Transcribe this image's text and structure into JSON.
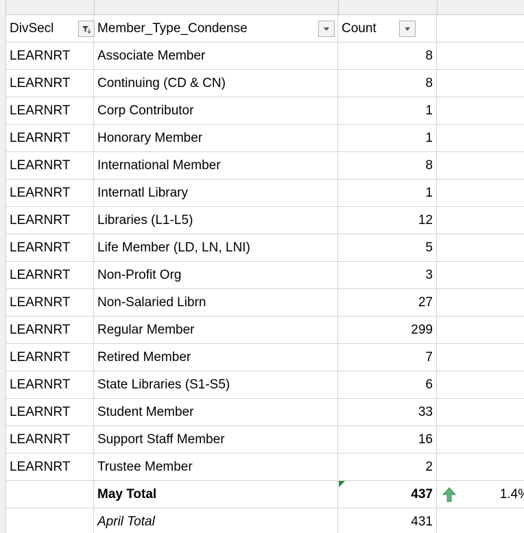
{
  "table": {
    "headers": [
      "DivSecl",
      "Member_Type_Condense",
      "Count"
    ],
    "rows": [
      [
        "LEARNRT",
        "Associate Member",
        "8"
      ],
      [
        "LEARNRT",
        "Continuing (CD & CN)",
        "8"
      ],
      [
        "LEARNRT",
        "Corp Contributor",
        "1"
      ],
      [
        "LEARNRT",
        "Honorary Member",
        "1"
      ],
      [
        "LEARNRT",
        "International Member",
        "8"
      ],
      [
        "LEARNRT",
        "Internatl Library",
        "1"
      ],
      [
        "LEARNRT",
        "Libraries (L1-L5)",
        "12"
      ],
      [
        "LEARNRT",
        "Life Member (LD, LN, LNI)",
        "5"
      ],
      [
        "LEARNRT",
        "Non-Profit Org",
        "3"
      ],
      [
        "LEARNRT",
        "Non-Salaried Librn",
        "27"
      ],
      [
        "LEARNRT",
        "Regular Member",
        "299"
      ],
      [
        "LEARNRT",
        "Retired Member",
        "7"
      ],
      [
        "LEARNRT",
        "State Libraries (S1-S5)",
        "6"
      ],
      [
        "LEARNRT",
        "Student Member",
        "33"
      ],
      [
        "LEARNRT",
        "Support Staff Member",
        "16"
      ],
      [
        "LEARNRT",
        "Trustee Member",
        "2"
      ]
    ],
    "totals": [
      {
        "label": "May Total",
        "count": "437",
        "change": "1.4%"
      },
      {
        "label": "April Total",
        "count": "431"
      }
    ]
  }
}
